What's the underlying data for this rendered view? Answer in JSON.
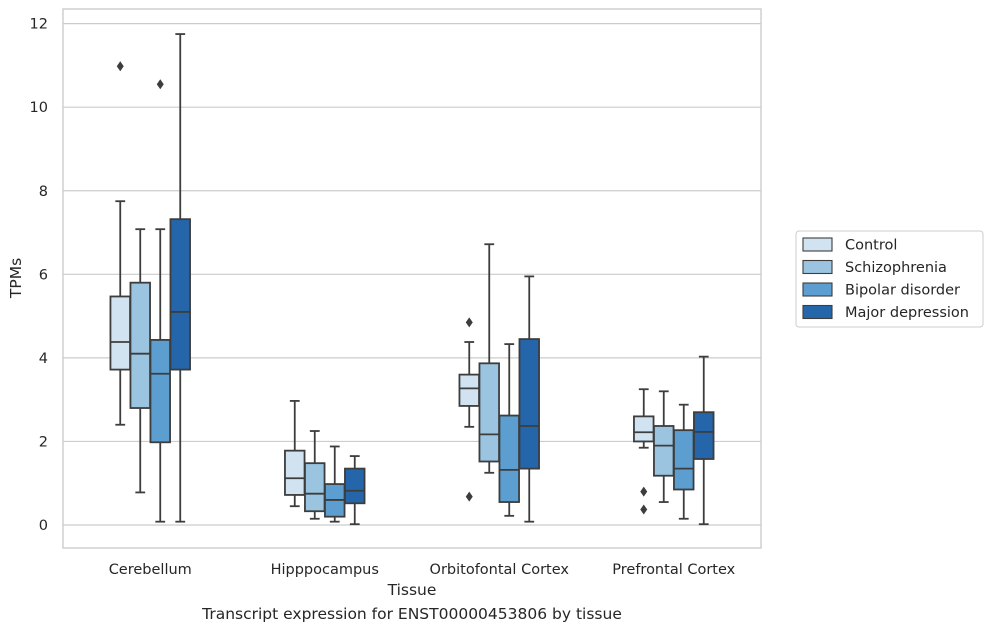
{
  "caption": "Transcript expression for ENST00000453806 by tissue",
  "chart_data": {
    "type": "box",
    "xlabel": "Tissue",
    "ylabel": "TPMs",
    "ylim": [
      -0.55,
      12.35
    ],
    "yticks": [
      0,
      2,
      4,
      6,
      8,
      10,
      12
    ],
    "grid": true,
    "legend_position": "center-right",
    "categories": [
      "Cerebellum",
      "Hipppocampus",
      "Orbitofontal Cortex",
      "Prefrontal Cortex"
    ],
    "series": [
      {
        "name": "Control",
        "color": "#d1e2f1",
        "boxes": [
          {
            "whislo": 2.4,
            "q1": 3.72,
            "med": 4.38,
            "q3": 5.47,
            "whishi": 7.75,
            "fliers": [
              10.98
            ]
          },
          {
            "whislo": 0.45,
            "q1": 0.72,
            "med": 1.12,
            "q3": 1.78,
            "whishi": 2.97,
            "fliers": []
          },
          {
            "whislo": 2.35,
            "q1": 2.85,
            "med": 3.27,
            "q3": 3.6,
            "whishi": 4.38,
            "fliers": [
              4.85,
              0.68
            ]
          },
          {
            "whislo": 1.85,
            "q1": 2.0,
            "med": 2.22,
            "q3": 2.6,
            "whishi": 3.25,
            "fliers": [
              0.8,
              0.37
            ]
          }
        ]
      },
      {
        "name": "Schizophrenia",
        "color": "#9ac4e0",
        "boxes": [
          {
            "whislo": 0.78,
            "q1": 2.8,
            "med": 4.1,
            "q3": 5.8,
            "whishi": 7.08,
            "fliers": []
          },
          {
            "whislo": 0.15,
            "q1": 0.33,
            "med": 0.75,
            "q3": 1.48,
            "whishi": 2.25,
            "fliers": []
          },
          {
            "whislo": 1.25,
            "q1": 1.52,
            "med": 2.17,
            "q3": 3.87,
            "whishi": 6.72,
            "fliers": []
          },
          {
            "whislo": 0.55,
            "q1": 1.18,
            "med": 1.9,
            "q3": 2.37,
            "whishi": 3.2,
            "fliers": []
          }
        ]
      },
      {
        "name": "Bipolar disorder",
        "color": "#5b9ecf",
        "boxes": [
          {
            "whislo": 0.08,
            "q1": 1.98,
            "med": 3.62,
            "q3": 4.43,
            "whishi": 7.08,
            "fliers": [
              10.55
            ]
          },
          {
            "whislo": 0.08,
            "q1": 0.2,
            "med": 0.6,
            "q3": 0.98,
            "whishi": 1.88,
            "fliers": []
          },
          {
            "whislo": 0.22,
            "q1": 0.55,
            "med": 1.32,
            "q3": 2.62,
            "whishi": 4.33,
            "fliers": []
          },
          {
            "whislo": 0.15,
            "q1": 0.85,
            "med": 1.35,
            "q3": 2.27,
            "whishi": 2.88,
            "fliers": []
          }
        ]
      },
      {
        "name": "Major depression",
        "color": "#2565a9",
        "boxes": [
          {
            "whislo": 0.08,
            "q1": 3.72,
            "med": 5.1,
            "q3": 7.32,
            "whishi": 11.75,
            "fliers": []
          },
          {
            "whislo": 0.02,
            "q1": 0.52,
            "med": 0.82,
            "q3": 1.35,
            "whishi": 1.65,
            "fliers": []
          },
          {
            "whislo": 0.08,
            "q1": 1.35,
            "med": 2.37,
            "q3": 4.45,
            "whishi": 5.95,
            "fliers": []
          },
          {
            "whislo": 0.02,
            "q1": 1.58,
            "med": 2.23,
            "q3": 2.7,
            "whishi": 4.03,
            "fliers": []
          }
        ]
      }
    ]
  }
}
